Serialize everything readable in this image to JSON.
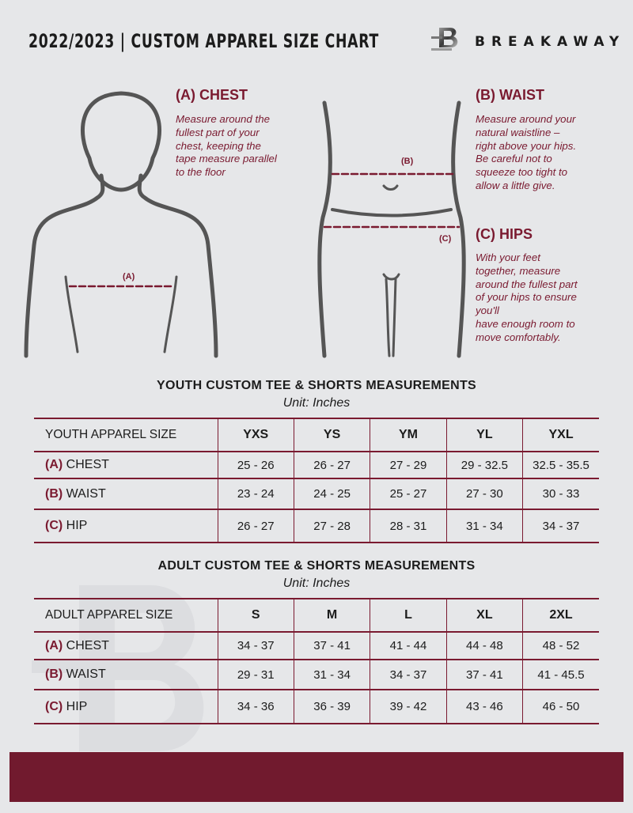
{
  "header": {
    "title": "2022/2023  |  CUSTOM APPAREL SIZE CHART",
    "brand": "BREAKAWAY"
  },
  "guide": {
    "chest": {
      "label": "(A) CHEST",
      "marker": "(A)",
      "lines": [
        "Measure around the",
        "fullest part of your",
        "chest, keeping the",
        "tape measure parallel",
        "to the floor"
      ]
    },
    "waist": {
      "label": "(B) WAIST",
      "marker": "(B)",
      "lines": [
        "Measure around your",
        "natural waistline –",
        "right above your hips.",
        "Be careful not to",
        "squeeze too tight to",
        "allow a little give."
      ]
    },
    "hips": {
      "label": "(C) HIPS",
      "marker": "(C)",
      "lines": [
        "With your feet",
        "together, measure",
        "around the fullest part",
        "of your hips to ensure",
        "you'll",
        "have enough room to",
        "move comfortably."
      ]
    }
  },
  "youth": {
    "title": "YOUTH CUSTOM TEE & SHORTS MEASUREMENTS",
    "unit": "Unit: Inches",
    "header": "YOUTH APPAREL SIZE",
    "sizes": [
      "YXS",
      "YS",
      "YM",
      "YL",
      "YXL"
    ],
    "rows": [
      {
        "code": "(A)",
        "name": "CHEST",
        "values": [
          "25 - 26",
          "26 - 27",
          "27 - 29",
          "29 - 32.5",
          "32.5 - 35.5"
        ]
      },
      {
        "code": "(B)",
        "name": "WAIST",
        "values": [
          "23 - 24",
          "24 - 25",
          "25 - 27",
          "27 - 30",
          "30 - 33"
        ]
      },
      {
        "code": "(C)",
        "name": "HIP",
        "values": [
          "26 - 27",
          "27 - 28",
          "28 - 31",
          "31 - 34",
          "34 - 37"
        ]
      }
    ]
  },
  "adult": {
    "title": "ADULT CUSTOM TEE & SHORTS MEASUREMENTS",
    "unit": "Unit: Inches",
    "header": "ADULT APPAREL SIZE",
    "sizes": [
      "S",
      "M",
      "L",
      "XL",
      "2XL"
    ],
    "rows": [
      {
        "code": "(A)",
        "name": "CHEST",
        "values": [
          "34 - 37",
          "37 - 41",
          "41 - 44",
          "44 - 48",
          "48 - 52"
        ]
      },
      {
        "code": "(B)",
        "name": "WAIST",
        "values": [
          "29 - 31",
          "31 - 34",
          "34 - 37",
          "37 - 41",
          "41 - 45.5"
        ]
      },
      {
        "code": "(C)",
        "name": "HIP",
        "values": [
          "34 - 36",
          "36 - 39",
          "39 - 42",
          "43 - 46",
          "46 - 50"
        ]
      }
    ]
  },
  "colors": {
    "accent": "#7a1a30",
    "background": "#e6e7e9",
    "band": "#711a2e"
  }
}
